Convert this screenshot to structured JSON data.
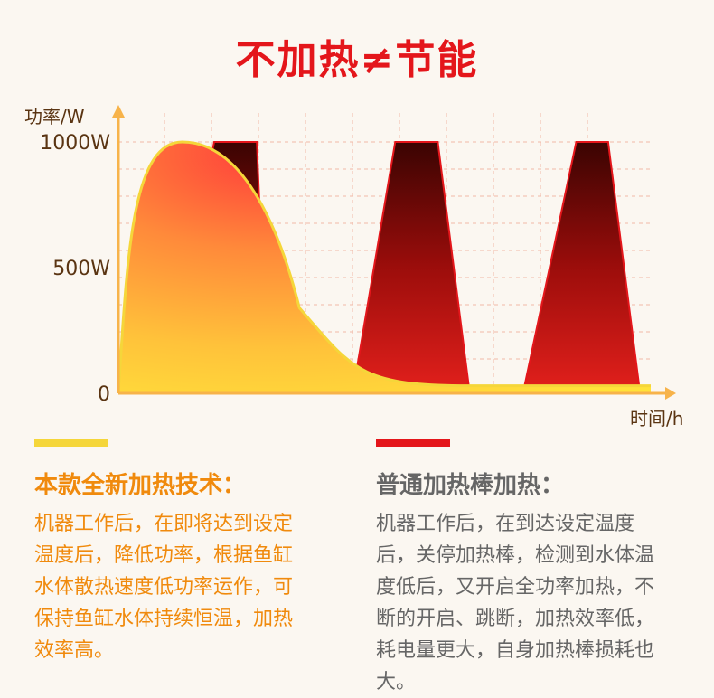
{
  "title": "不加热≠节能",
  "chart_data": {
    "type": "area",
    "ylabel": "功率/W",
    "xlabel": "时间/h",
    "yticks": [
      "1000W",
      "500W",
      "0"
    ],
    "ylim": [
      0,
      1000
    ],
    "grid": true,
    "series": [
      {
        "name": "本款全新加热技术",
        "color": "#f5d63a",
        "points": [
          [
            0,
            0
          ],
          [
            0.6,
            1000
          ],
          [
            1.7,
            340
          ],
          [
            3.3,
            30
          ],
          [
            5.0,
            30
          ]
        ]
      },
      {
        "name": "普通加热棒加热",
        "color": "#d81a1a",
        "segments": [
          [
            [
              0.4,
              0
            ],
            [
              0.9,
              1000
            ],
            [
              1.3,
              1000
            ],
            [
              1.4,
              0
            ]
          ],
          [
            [
              2.2,
              0
            ],
            [
              2.6,
              1000
            ],
            [
              3.0,
              1000
            ],
            [
              3.3,
              0
            ]
          ],
          [
            [
              3.8,
              0
            ],
            [
              4.3,
              1000
            ],
            [
              4.6,
              1000
            ],
            [
              4.9,
              0
            ]
          ]
        ]
      }
    ]
  },
  "left": {
    "heading": "本款全新加热技术：",
    "lines": [
      "机器工作后，在即将达到设定",
      "温度后，降低功率，根据鱼缸",
      "水体散热速度低功率运作，可",
      "保持鱼缸水体持续恒温，加热",
      "效率高。"
    ]
  },
  "right": {
    "heading": "普通加热棒加热：",
    "lines": [
      "机器工作后，在到达设定温度",
      "后，关停加热棒，检测到水体温",
      "度低后，又开启全功率加热，不",
      "断的开启、跳断，加热效率低，",
      "耗电量更大，自身加热棒损耗也",
      "大。"
    ]
  }
}
